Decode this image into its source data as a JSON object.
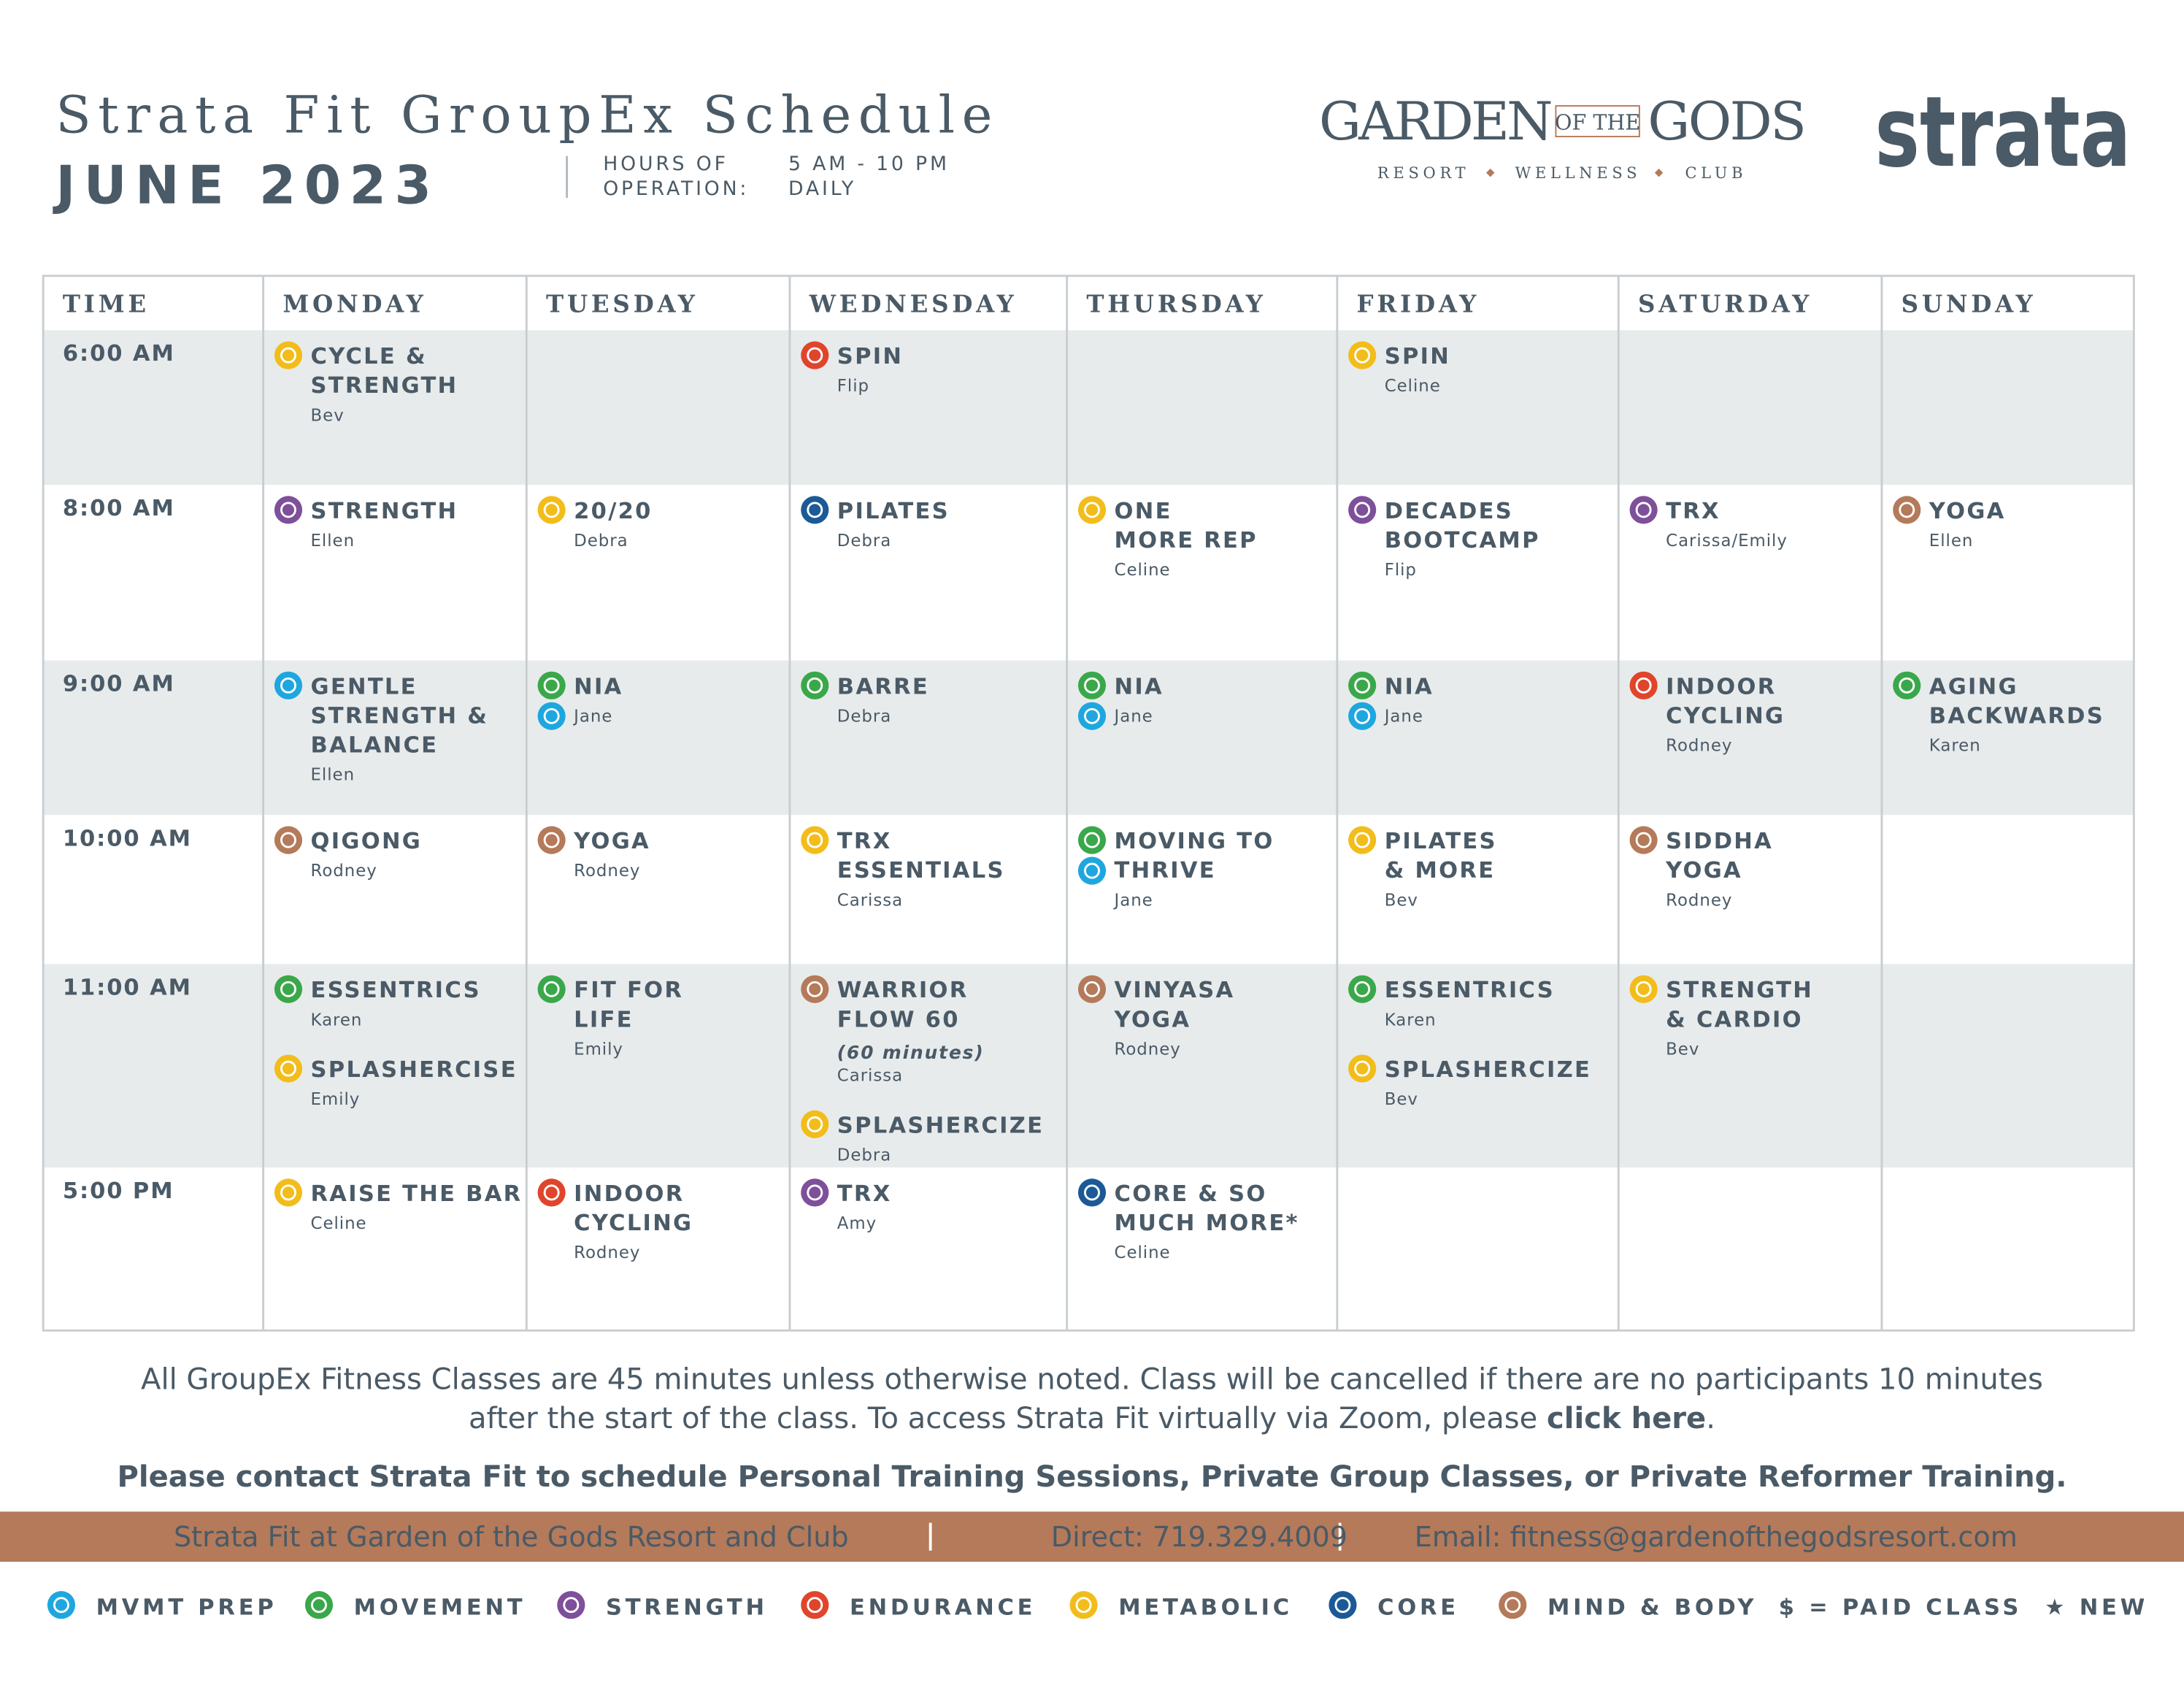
{
  "header": {
    "title": "Strata Fit GroupEx Schedule",
    "month": "JUNE 2023",
    "hours_label": [
      "HOURS OF",
      "OPERATION:"
    ],
    "hours_value": [
      "5 AM - 10 PM",
      "DAILY"
    ],
    "resort_logo": {
      "left": "GARDEN",
      "middle": "OF THE",
      "right": "GODS",
      "tagline": [
        "RESORT",
        "WELLNESS",
        "CLUB"
      ]
    },
    "brand_logo": "strata"
  },
  "table": {
    "columns": [
      "TIME",
      "MONDAY",
      "TUESDAY",
      "WEDNESDAY",
      "THURSDAY",
      "FRIDAY",
      "SATURDAY",
      "SUNDAY"
    ],
    "rows": [
      {
        "time": "6:00 AM",
        "cells": [
          [
            {
              "name": [
                "CYCLE &",
                "STRENGTH"
              ],
              "instructor": "Bev",
              "icons": [
                "METABOLIC"
              ]
            }
          ],
          [],
          [
            {
              "name": [
                "SPIN"
              ],
              "instructor": "Flip",
              "icons": [
                "ENDURANCE"
              ]
            }
          ],
          [],
          [
            {
              "name": [
                "SPIN"
              ],
              "instructor": "Celine",
              "icons": [
                "METABOLIC"
              ]
            }
          ],
          [],
          []
        ]
      },
      {
        "time": "8:00 AM",
        "cells": [
          [
            {
              "name": [
                "STRENGTH"
              ],
              "instructor": "Ellen",
              "icons": [
                "STRENGTH"
              ]
            }
          ],
          [
            {
              "name": [
                "20/20"
              ],
              "instructor": "Debra",
              "icons": [
                "METABOLIC"
              ]
            }
          ],
          [
            {
              "name": [
                "PILATES"
              ],
              "instructor": "Debra",
              "icons": [
                "CORE"
              ]
            }
          ],
          [
            {
              "name": [
                "ONE",
                "MORE REP"
              ],
              "instructor": "Celine",
              "icons": [
                "METABOLIC"
              ]
            }
          ],
          [
            {
              "name": [
                "DECADES",
                "BOOTCAMP"
              ],
              "instructor": "Flip",
              "icons": [
                "STRENGTH"
              ]
            }
          ],
          [
            {
              "name": [
                "TRX"
              ],
              "instructor": "Carissa/Emily",
              "icons": [
                "STRENGTH"
              ]
            }
          ],
          [
            {
              "name": [
                "YOGA"
              ],
              "instructor": "Ellen",
              "icons": [
                "MIND & BODY"
              ]
            }
          ]
        ]
      },
      {
        "time": "9:00 AM",
        "cells": [
          [
            {
              "name": [
                "GENTLE",
                "STRENGTH &",
                "BALANCE"
              ],
              "instructor": "Ellen",
              "icons": [
                "MVMT PREP"
              ]
            }
          ],
          [
            {
              "name": [
                "NIA"
              ],
              "instructor": "Jane",
              "icons": [
                "MOVEMENT",
                "MVMT PREP"
              ]
            }
          ],
          [
            {
              "name": [
                "BARRE"
              ],
              "instructor": "Debra",
              "icons": [
                "MOVEMENT"
              ]
            }
          ],
          [
            {
              "name": [
                "NIA"
              ],
              "instructor": "Jane",
              "icons": [
                "MOVEMENT",
                "MVMT PREP"
              ]
            }
          ],
          [
            {
              "name": [
                "NIA"
              ],
              "instructor": "Jane",
              "icons": [
                "MOVEMENT",
                "MVMT PREP"
              ]
            }
          ],
          [
            {
              "name": [
                "INDOOR",
                "CYCLING"
              ],
              "instructor": "Rodney",
              "icons": [
                "ENDURANCE"
              ]
            }
          ],
          [
            {
              "name": [
                "AGING",
                "BACKWARDS"
              ],
              "instructor": "Karen",
              "icons": [
                "MOVEMENT"
              ]
            }
          ]
        ]
      },
      {
        "time": "10:00 AM",
        "cells": [
          [
            {
              "name": [
                "QIGONG"
              ],
              "instructor": "Rodney",
              "icons": [
                "MIND & BODY"
              ]
            }
          ],
          [
            {
              "name": [
                "YOGA"
              ],
              "instructor": "Rodney",
              "icons": [
                "MIND & BODY"
              ]
            }
          ],
          [
            {
              "name": [
                "TRX",
                "ESSENTIALS"
              ],
              "instructor": "Carissa",
              "icons": [
                "METABOLIC"
              ]
            }
          ],
          [
            {
              "name": [
                "MOVING TO",
                "THRIVE"
              ],
              "instructor": "Jane",
              "icons": [
                "MOVEMENT",
                "MVMT PREP"
              ]
            }
          ],
          [
            {
              "name": [
                "PILATES",
                "& MORE"
              ],
              "instructor": "Bev",
              "icons": [
                "METABOLIC"
              ]
            }
          ],
          [
            {
              "name": [
                "SIDDHA",
                "YOGA"
              ],
              "instructor": "Rodney",
              "icons": [
                "MIND & BODY"
              ]
            }
          ],
          []
        ]
      },
      {
        "time": "11:00 AM",
        "cells": [
          [
            {
              "name": [
                "ESSENTRICS"
              ],
              "instructor": "Karen",
              "icons": [
                "MOVEMENT"
              ]
            },
            {
              "name": [
                "SPLASHERCISE"
              ],
              "instructor": "Emily",
              "icons": [
                "METABOLIC"
              ]
            }
          ],
          [
            {
              "name": [
                "FIT FOR",
                "LIFE"
              ],
              "instructor": "Emily",
              "icons": [
                "MOVEMENT"
              ]
            }
          ],
          [
            {
              "name": [
                "WARRIOR",
                "FLOW 60"
              ],
              "note": "(60 minutes)",
              "instructor": "Carissa",
              "icons": [
                "MIND & BODY"
              ]
            },
            {
              "name": [
                "SPLASHERCIZE"
              ],
              "instructor": "Debra",
              "icons": [
                "METABOLIC"
              ]
            }
          ],
          [
            {
              "name": [
                "VINYASA",
                "YOGA"
              ],
              "instructor": "Rodney",
              "icons": [
                "MIND & BODY"
              ]
            }
          ],
          [
            {
              "name": [
                "ESSENTRICS"
              ],
              "instructor": "Karen",
              "icons": [
                "MOVEMENT"
              ]
            },
            {
              "name": [
                "SPLASHERCIZE"
              ],
              "instructor": "Bev",
              "icons": [
                "METABOLIC"
              ]
            }
          ],
          [
            {
              "name": [
                "STRENGTH",
                "& CARDIO"
              ],
              "instructor": "Bev",
              "icons": [
                "METABOLIC"
              ]
            }
          ],
          []
        ]
      },
      {
        "time": "5:00 PM",
        "cells": [
          [
            {
              "name": [
                "RAISE THE BAR"
              ],
              "instructor": "Celine",
              "icons": [
                "METABOLIC"
              ]
            }
          ],
          [
            {
              "name": [
                "INDOOR",
                "CYCLING"
              ],
              "instructor": "Rodney",
              "icons": [
                "ENDURANCE"
              ]
            }
          ],
          [
            {
              "name": [
                "TRX"
              ],
              "instructor": "Amy",
              "icons": [
                "STRENGTH"
              ]
            }
          ],
          [
            {
              "name": [
                "CORE & SO",
                "MUCH MORE*"
              ],
              "instructor": "Celine",
              "icons": [
                "CORE"
              ]
            }
          ],
          [],
          [],
          []
        ]
      }
    ]
  },
  "notes": {
    "line1": "All GroupEx Fitness Classes are 45 minutes unless otherwise noted. Class will be cancelled if there are no participants 10 minutes",
    "line2": "after the start of the class. To access Strata Fit virtually via Zoom, please ",
    "link": "click here",
    "line2_end": ".",
    "contact": "Please contact Strata Fit to schedule Personal Training Sessions, Private Group Classes, or Private Reformer Training."
  },
  "footer_bar": [
    "Strata Fit at Garden of the Gods Resort and Club",
    "Direct:  719.329.4009",
    "Email: fitness@gardenofthegodsresort.com"
  ],
  "legend": {
    "items": [
      {
        "label": "MVMT PREP",
        "color": "#1ea7df"
      },
      {
        "label": "MOVEMENT",
        "color": "#3aa84a"
      },
      {
        "label": "STRENGTH",
        "color": "#7e4f9a"
      },
      {
        "label": "ENDURANCE",
        "color": "#e0452c"
      },
      {
        "label": "METABOLIC",
        "color": "#f2bd1b"
      },
      {
        "label": "CORE",
        "color": "#1b5a96"
      },
      {
        "label": "MIND & BODY",
        "color": "#b47a5a"
      }
    ],
    "extras": [
      "$ = PAID CLASS",
      "★ NEW"
    ]
  }
}
